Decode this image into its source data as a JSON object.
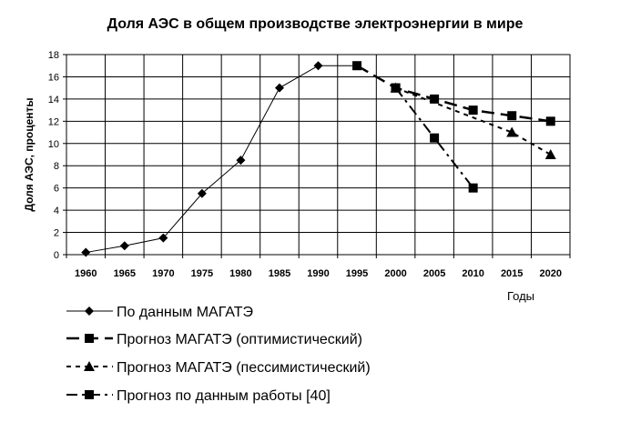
{
  "chart_data": {
    "type": "line",
    "title": "Доля АЭС в общем производстве электроэнергии в мире",
    "xlabel": "Годы",
    "ylabel": "Доля АЭС, проценты",
    "categories": [
      "1960",
      "1965",
      "1970",
      "1975",
      "1980",
      "1985",
      "1990",
      "1995",
      "2000",
      "2005",
      "2010",
      "2015",
      "2020"
    ],
    "ylim": [
      0,
      18
    ],
    "yticks": [
      "0",
      "2",
      "4",
      "6",
      "8",
      "10",
      "12",
      "14",
      "16",
      "18"
    ],
    "grid": true,
    "legend_position": "bottom-left",
    "series": [
      {
        "name": "По данным МАГАТЭ",
        "style": "solid",
        "marker": "diamond",
        "points": [
          {
            "x": "1960",
            "y": 0.2
          },
          {
            "x": "1965",
            "y": 0.8
          },
          {
            "x": "1970",
            "y": 1.5
          },
          {
            "x": "1975",
            "y": 5.5
          },
          {
            "x": "1980",
            "y": 8.5
          },
          {
            "x": "1985",
            "y": 15.0
          },
          {
            "x": "1990",
            "y": 17.0
          },
          {
            "x": "1995",
            "y": 17.0
          }
        ]
      },
      {
        "name": "Прогноз МАГАТЭ (оптимистический)",
        "style": "long-dash",
        "marker": "square",
        "points": [
          {
            "x": "1995",
            "y": 17.0
          },
          {
            "x": "2000",
            "y": 15.0
          },
          {
            "x": "2005",
            "y": 14.0
          },
          {
            "x": "2010",
            "y": 13.0
          },
          {
            "x": "2015",
            "y": 12.5
          },
          {
            "x": "2020",
            "y": 12.0
          }
        ]
      },
      {
        "name": "Прогноз МАГАТЭ (пессимистический)",
        "style": "short-dash",
        "marker": "triangle",
        "points": [
          {
            "x": "2000",
            "y": 15.0
          },
          {
            "x": "2015",
            "y": 11.0
          },
          {
            "x": "2020",
            "y": 9.0
          }
        ]
      },
      {
        "name": "Прогноз по данным работы [40]",
        "style": "dash-dot",
        "marker": "square",
        "points": [
          {
            "x": "2000",
            "y": 15.0
          },
          {
            "x": "2005",
            "y": 10.5
          },
          {
            "x": "2010",
            "y": 6.0
          }
        ]
      }
    ]
  }
}
